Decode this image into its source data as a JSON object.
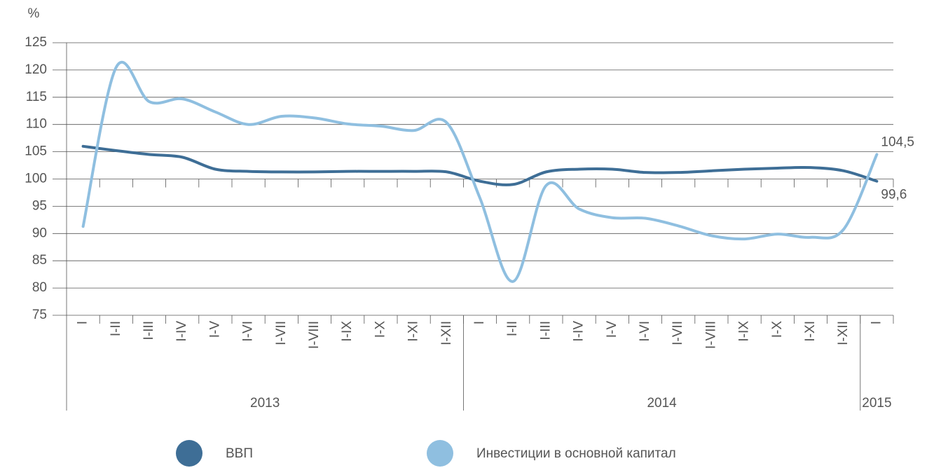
{
  "chart_data": {
    "type": "line",
    "y_label": "%",
    "categories": [
      "I",
      "I-II",
      "I-III",
      "I-IV",
      "I-V",
      "I-VI",
      "I-VII",
      "I-VIII",
      "I-IX",
      "I-X",
      "I-XI",
      "I-XII",
      "I",
      "I-II",
      "I-III",
      "I-IV",
      "I-V",
      "I-VI",
      "I-VII",
      "I-VIII",
      "I-IX",
      "I-X",
      "I-XI",
      "I-XII",
      "I"
    ],
    "groups": [
      {
        "label": "2013",
        "size": 12
      },
      {
        "label": "2014",
        "size": 12
      },
      {
        "label": "2015",
        "size": 1
      }
    ],
    "series": [
      {
        "name": "ВВП",
        "color": "#3e6e96",
        "values": [
          106.0,
          105.2,
          104.5,
          104.0,
          101.8,
          101.4,
          101.3,
          101.3,
          101.4,
          101.4,
          101.4,
          101.3,
          99.6,
          99.0,
          101.3,
          101.8,
          101.8,
          101.2,
          101.2,
          101.5,
          101.8,
          102.0,
          102.1,
          101.5,
          99.6
        ],
        "value_labels": [
          null,
          null,
          null,
          null,
          null,
          null,
          null,
          null,
          null,
          null,
          null,
          null,
          null,
          null,
          null,
          null,
          null,
          null,
          null,
          null,
          null,
          null,
          null,
          null,
          "99,6"
        ]
      },
      {
        "name": "Инвестиции в основной капитал",
        "color": "#8fbfe0",
        "values": [
          91.3,
          120.5,
          114.2,
          114.7,
          112.3,
          110.0,
          111.5,
          111.2,
          110.1,
          109.7,
          108.9,
          110.3,
          96.5,
          81.2,
          98.8,
          94.5,
          92.9,
          92.8,
          91.4,
          89.6,
          89.0,
          89.9,
          89.3,
          90.8,
          104.5
        ],
        "value_labels": [
          null,
          null,
          null,
          null,
          null,
          null,
          null,
          null,
          null,
          null,
          null,
          null,
          null,
          null,
          null,
          null,
          null,
          null,
          null,
          null,
          null,
          null,
          null,
          null,
          "104,5"
        ]
      }
    ],
    "ylim": [
      75,
      125
    ],
    "yticks": [
      75,
      80,
      85,
      90,
      95,
      100,
      105,
      110,
      115,
      120,
      125
    ],
    "grid": true
  }
}
